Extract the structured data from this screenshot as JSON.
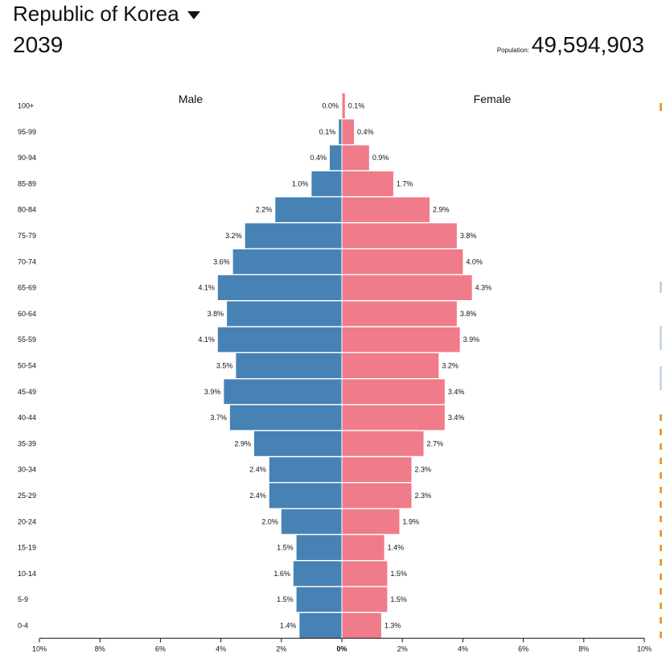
{
  "header": {
    "country": "Republic of Korea",
    "year": "2039",
    "population_label": "Population:",
    "population_value": "49,594,903"
  },
  "colors": {
    "male": "#4682b4",
    "female": "#f07b8a",
    "text": "#111111",
    "edge_orange": "#e8a030"
  },
  "chart_data": {
    "type": "bar",
    "orientation": "horizontal-pyramid",
    "series_labels": {
      "male": "Male",
      "female": "Female"
    },
    "age_groups": [
      "100+",
      "95-99",
      "90-94",
      "85-89",
      "80-84",
      "75-79",
      "70-74",
      "65-69",
      "60-64",
      "55-59",
      "50-54",
      "45-49",
      "40-44",
      "35-39",
      "30-34",
      "25-29",
      "20-24",
      "15-19",
      "10-14",
      "5-9",
      "0-4"
    ],
    "male": [
      0.0,
      0.1,
      0.4,
      1.0,
      2.2,
      3.2,
      3.6,
      4.1,
      3.8,
      4.1,
      3.5,
      3.9,
      3.7,
      2.9,
      2.4,
      2.4,
      2.0,
      1.5,
      1.6,
      1.5,
      1.4
    ],
    "female": [
      0.1,
      0.4,
      0.9,
      1.7,
      2.9,
      3.8,
      4.0,
      4.3,
      3.8,
      3.9,
      3.2,
      3.4,
      3.4,
      2.7,
      2.3,
      2.3,
      1.9,
      1.4,
      1.5,
      1.5,
      1.3
    ],
    "bar_labels_male": [
      "0.0%",
      "0.1%",
      "0.4%",
      "1.0%",
      "2.2%",
      "3.2%",
      "3.6%",
      "4.1%",
      "3.8%",
      "4.1%",
      "3.5%",
      "3.9%",
      "3.7%",
      "2.9%",
      "2.4%",
      "2.4%",
      "2.0%",
      "1.5%",
      "1.6%",
      "1.5%",
      "1.4%"
    ],
    "bar_labels_female": [
      "0.1%",
      "0.4%",
      "0.9%",
      "1.7%",
      "2.9%",
      "3.8%",
      "4.0%",
      "4.3%",
      "3.8%",
      "3.9%",
      "3.2%",
      "3.4%",
      "3.4%",
      "2.7%",
      "2.3%",
      "2.3%",
      "1.9%",
      "1.4%",
      "1.5%",
      "1.5%",
      "1.3%"
    ],
    "x_ticks": [
      "10%",
      "8%",
      "6%",
      "4%",
      "2%",
      "0%",
      "2%",
      "4%",
      "6%",
      "8%",
      "10%"
    ],
    "x_range": [
      -10,
      10
    ],
    "units": "% of population"
  }
}
